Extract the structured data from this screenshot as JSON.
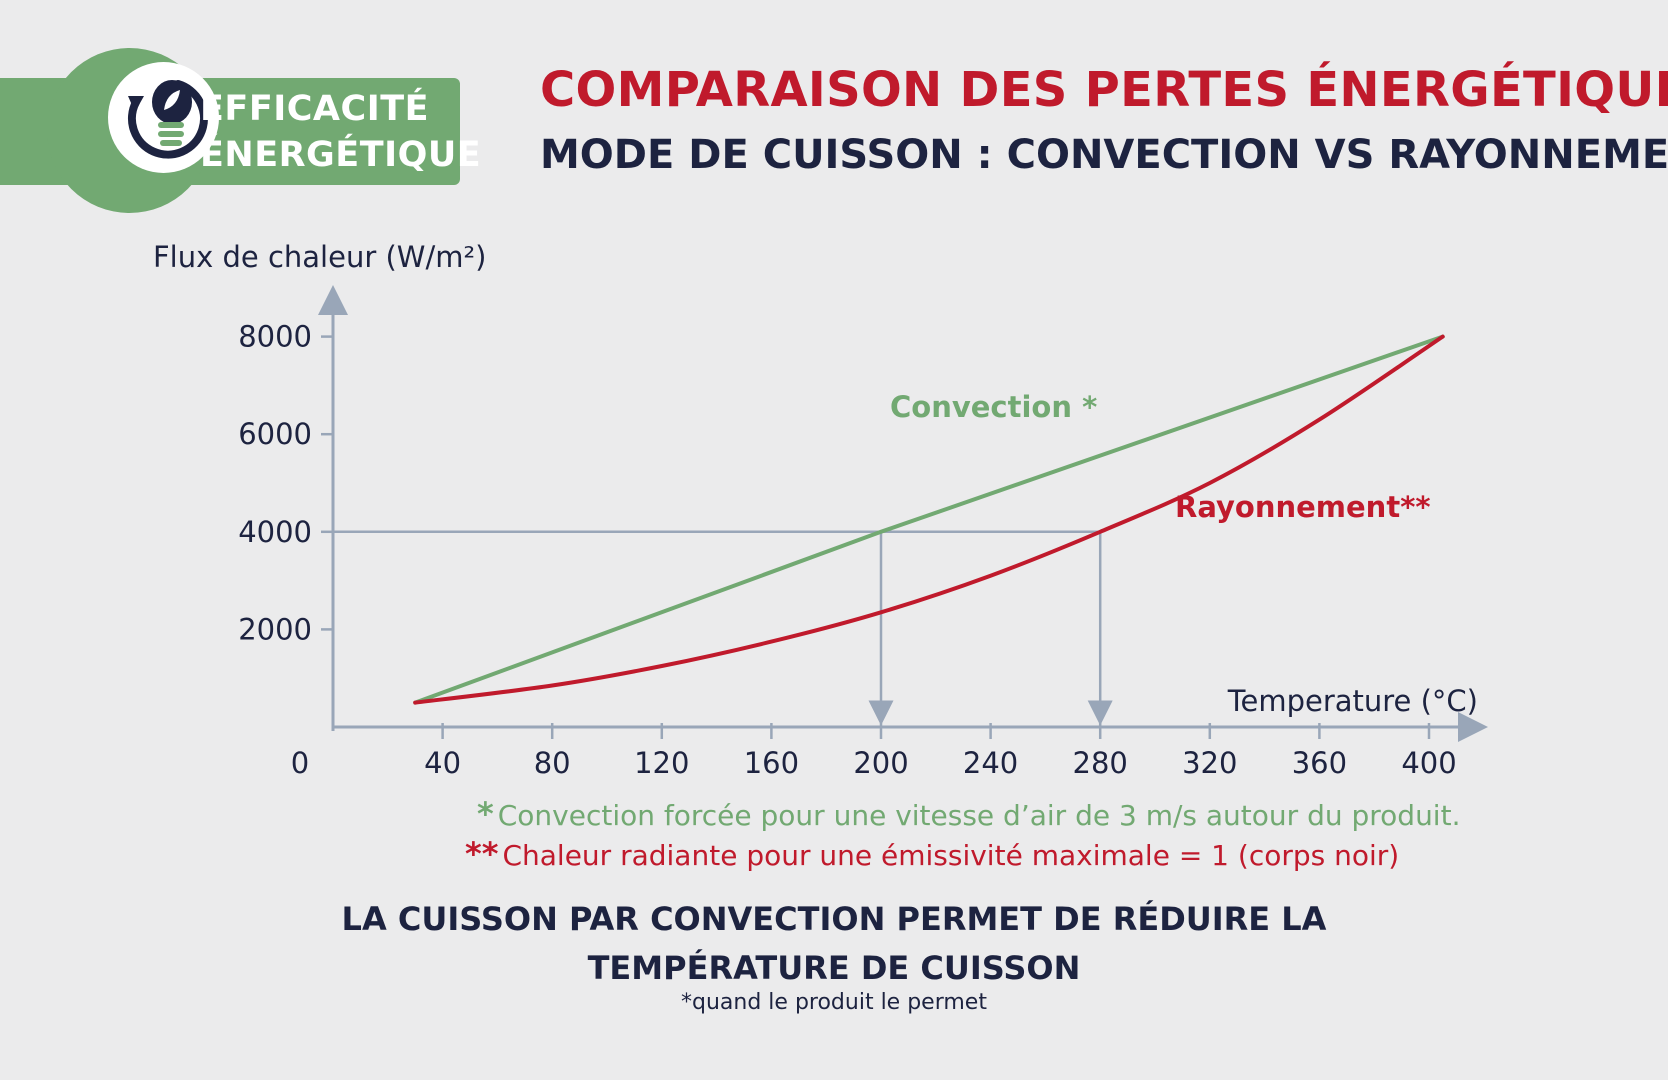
{
  "badge": {
    "line1": "EFFICACITÉ",
    "line2": "ÉNERGÉTIQUE",
    "icon": "lightbulb-leaf-cycle-icon",
    "color": "#72a972"
  },
  "header": {
    "title": "COMPARAISON DES PERTES ÉNERGÉTIQUES",
    "subtitle": "MODE DE CUISSON : CONVECTION VS RAYONNEMENT"
  },
  "colors": {
    "convection": "#72a972",
    "rayonnement": "#c01a2c",
    "navy": "#1d2340",
    "axis": "#99a6b8",
    "background": "#ebebec"
  },
  "chart_data": {
    "type": "line",
    "ylabel": "Flux de chaleur (W/m²)",
    "xlabel": "Temperature (°C)",
    "xlim": [
      0,
      420
    ],
    "ylim": [
      0,
      8000
    ],
    "xticks": [
      0,
      40,
      80,
      120,
      160,
      200,
      240,
      280,
      320,
      360,
      400
    ],
    "yticks": [
      2000,
      4000,
      6000,
      8000
    ],
    "grid": false,
    "series": [
      {
        "name": "Convection *",
        "color": "#72a972",
        "x": [
          30,
          200,
          405
        ],
        "y": [
          500,
          4000,
          8000
        ]
      },
      {
        "name": "Rayonnement**",
        "color": "#c01a2c",
        "x": [
          30,
          80,
          120,
          160,
          200,
          240,
          280,
          320,
          360,
          405
        ],
        "y": [
          500,
          850,
          1250,
          1750,
          2350,
          3100,
          4000,
          5000,
          6300,
          8000
        ]
      }
    ],
    "reference_lines": {
      "y": 4000,
      "x_markers": [
        200,
        280
      ]
    }
  },
  "notes": {
    "convection_mark": "*",
    "convection": "Convection forcée pour une vitesse d’air de 3 m/s autour du produit.",
    "rayonnement_mark": "**",
    "rayonnement": "Chaleur radiante pour une émissivité maximale = 1 (corps noir)"
  },
  "conclusion": {
    "line1": "LA CUISSON PAR CONVECTION PERMET DE RÉDUIRE LA",
    "line2": "TEMPÉRATURE DE CUISSON",
    "footnote": "*quand le produit le permet"
  }
}
